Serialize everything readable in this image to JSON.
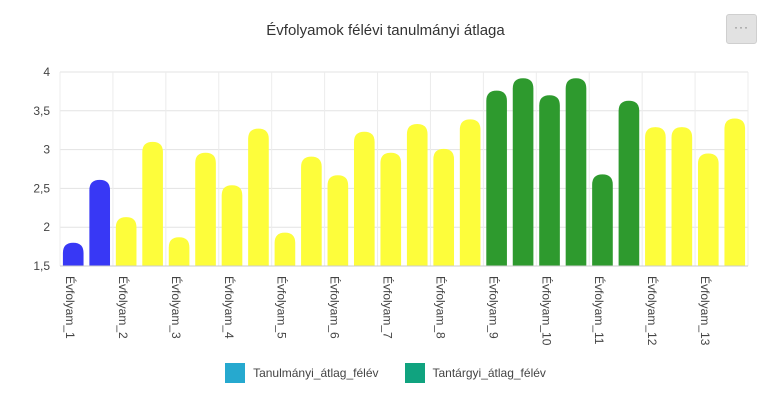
{
  "menu": {
    "label": "···"
  },
  "chart_data": {
    "type": "bar",
    "title": "Évfolyamok félévi tanulmányi átlaga",
    "xlabel": "",
    "ylabel": "",
    "ylim": [
      1.5,
      4
    ],
    "yticks": [
      "1,5",
      "2",
      "2,5",
      "3",
      "3,5",
      "4"
    ],
    "ytick_values": [
      1.5,
      2,
      2.5,
      3,
      3.5,
      4
    ],
    "grid": true,
    "legend_position": "bottom-center",
    "category_labels": [
      "Évfolyam_1",
      "Évfolyam_2",
      "Évfolyam_3",
      "Évfolyam_4",
      "Évfolyam_5",
      "Évfolyam_6",
      "Évfolyam_7",
      "Évfolyam_8",
      "Évfolyam_9",
      "Évfolyam_10",
      "Évfolyam_11",
      "Évfolyam_12",
      "Évfolyam_13"
    ],
    "bar_values": [
      1.8,
      2.61,
      2.13,
      3.1,
      1.87,
      2.96,
      2.54,
      3.27,
      1.93,
      2.91,
      2.67,
      3.23,
      2.96,
      3.33,
      3.01,
      3.39,
      3.76,
      3.92,
      3.7,
      3.92,
      2.68,
      3.63,
      3.29,
      3.29,
      2.95,
      3.4
    ],
    "bar_colors": [
      "#3838f5",
      "#3838f5",
      "#fdfd3b",
      "#fdfd3b",
      "#fdfd3b",
      "#fdfd3b",
      "#fdfd3b",
      "#fdfd3b",
      "#fdfd3b",
      "#fdfd3b",
      "#fdfd3b",
      "#fdfd3b",
      "#fdfd3b",
      "#fdfd3b",
      "#fdfd3b",
      "#fdfd3b",
      "#2e9a2e",
      "#2e9a2e",
      "#2e9a2e",
      "#2e9a2e",
      "#2e9a2e",
      "#2e9a2e",
      "#fdfd3b",
      "#fdfd3b",
      "#fdfd3b",
      "#fdfd3b"
    ],
    "legend": [
      {
        "name": "Tanulmányi_átlag_félév",
        "color": "#26a9cf"
      },
      {
        "name": "Tantárgyi_átlag_félév",
        "color": "#10a37f"
      }
    ]
  }
}
